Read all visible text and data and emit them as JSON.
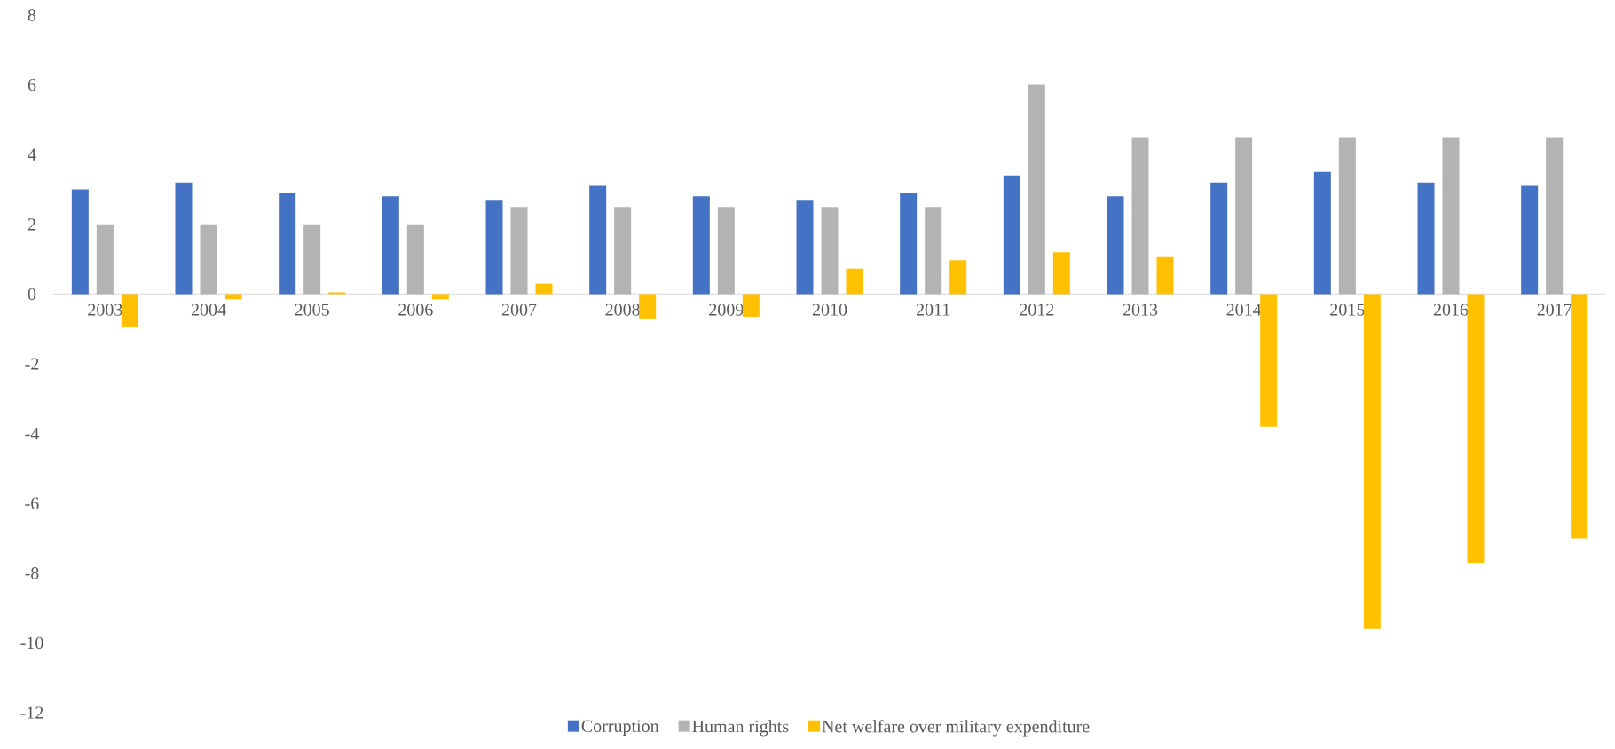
{
  "chart_data": {
    "type": "bar",
    "categories": [
      "2003",
      "2004",
      "2005",
      "2006",
      "2007",
      "2008",
      "2009",
      "2010",
      "2011",
      "2012",
      "2013",
      "2014",
      "2015",
      "2016",
      "2017"
    ],
    "series": [
      {
        "name": "Corruption",
        "color": "#4472c4",
        "values": [
          3.0,
          3.2,
          2.9,
          2.8,
          2.7,
          3.1,
          2.8,
          2.7,
          2.9,
          3.4,
          2.8,
          3.2,
          3.5,
          3.2,
          3.1
        ]
      },
      {
        "name": "Human rights",
        "color": "#b3b3b3",
        "values": [
          2.0,
          2.0,
          2.0,
          2.0,
          2.5,
          2.5,
          2.5,
          2.5,
          2.5,
          6.0,
          4.5,
          4.5,
          4.5,
          4.5,
          4.5
        ]
      },
      {
        "name": "Net welfare over military expenditure",
        "color": "#ffc000",
        "values": [
          -0.95,
          -0.15,
          0.05,
          -0.15,
          0.3,
          -0.7,
          -0.65,
          0.73,
          0.97,
          1.2,
          1.06,
          -3.8,
          -9.6,
          -7.7,
          -7.0
        ]
      }
    ],
    "ylim": [
      -12,
      8
    ],
    "yticks": [
      -12,
      -10,
      -8,
      -6,
      -4,
      -2,
      0,
      2,
      4,
      6,
      8
    ],
    "grid": false,
    "legend": "bottom"
  }
}
